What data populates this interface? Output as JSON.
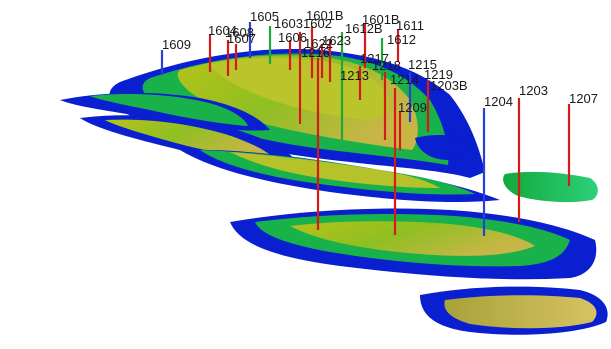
{
  "scene": {
    "description_type": "3d-geological-layer-model",
    "colors": {
      "background": "#ffffff",
      "layer_low": "#0a1fd0",
      "layer_mid": "#19b24a",
      "layer_high": "#b8c21e",
      "layer_top": "#c9b84a",
      "well_red": "#d61a1a",
      "well_blue": "#2a3fd8",
      "well_green": "#1fa83a"
    }
  },
  "wells": [
    {
      "id": "1609",
      "label": "1609",
      "color": "well_blue"
    },
    {
      "id": "1604",
      "label": "1604",
      "color": "well_red"
    },
    {
      "id": "1608",
      "label": "1608",
      "color": "well_red"
    },
    {
      "id": "1607",
      "label": "1607",
      "color": "well_red"
    },
    {
      "id": "1605",
      "label": "1605",
      "color": "well_blue"
    },
    {
      "id": "1603",
      "label": "1603",
      "color": "well_green"
    },
    {
      "id": "1602",
      "label": "1602",
      "color": "well_red"
    },
    {
      "id": "1606",
      "label": "1606",
      "color": "well_red"
    },
    {
      "id": "1601B",
      "label": "1601B",
      "color": "well_red"
    },
    {
      "id": "1601B2",
      "label": "1601B",
      "color": "well_red"
    },
    {
      "id": "1611",
      "label": "1611",
      "color": "well_red"
    },
    {
      "id": "1612",
      "label": "1612",
      "color": "well_green"
    },
    {
      "id": "1612B",
      "label": "1612B",
      "color": "well_red"
    },
    {
      "id": "1622",
      "label": "1622",
      "color": "well_red"
    },
    {
      "id": "1623",
      "label": "1623",
      "color": "well_red"
    },
    {
      "id": "1216",
      "label": "1216",
      "color": "well_red"
    },
    {
      "id": "1217",
      "label": "1217",
      "color": "well_red"
    },
    {
      "id": "1218",
      "label": "1218",
      "color": "well_red"
    },
    {
      "id": "1215",
      "label": "1215",
      "color": "well_red"
    },
    {
      "id": "1213",
      "label": "1213",
      "color": "well_red"
    },
    {
      "id": "1214",
      "label": "1214",
      "color": "well_red"
    },
    {
      "id": "1219",
      "label": "1219",
      "color": "well_red"
    },
    {
      "id": "1203B",
      "label": "1203B",
      "color": "well_red"
    },
    {
      "id": "1209",
      "label": "1209",
      "color": "well_red"
    },
    {
      "id": "1204",
      "label": "1204",
      "color": "well_blue"
    },
    {
      "id": "1203",
      "label": "1203",
      "color": "well_red"
    },
    {
      "id": "1207",
      "label": "1207",
      "color": "well_red"
    }
  ]
}
